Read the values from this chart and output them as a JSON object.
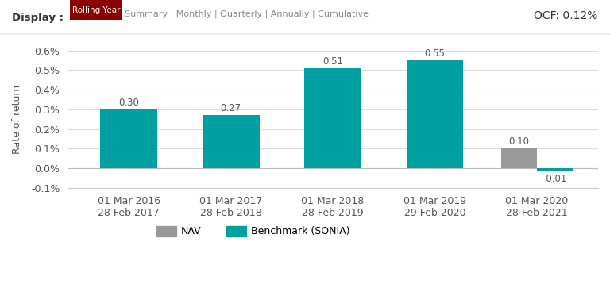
{
  "categories": [
    "01 Mar 2016\n28 Feb 2017",
    "01 Mar 2017\n28 Feb 2018",
    "01 Mar 2018\n28 Feb 2019",
    "01 Mar 2019\n29 Feb 2020",
    "01 Mar 2020\n28 Feb 2021"
  ],
  "nav_values": [
    null,
    null,
    null,
    null,
    0.1
  ],
  "benchmark_values": [
    0.3,
    0.27,
    0.51,
    0.55,
    -0.01
  ],
  "nav_color": "#999999",
  "benchmark_color": "#00A0A0",
  "bar_width": 0.35,
  "ylim": [
    -0.1,
    0.6
  ],
  "yticks": [
    -0.1,
    0.0,
    0.1,
    0.2,
    0.3,
    0.4,
    0.5,
    0.6
  ],
  "ylabel": "Rate of return",
  "background_color": "#ffffff",
  "grid_color": "#dddddd",
  "display_label": "Display :",
  "display_options": [
    "Rolling Year",
    "Summary",
    "Monthly",
    "Quarterly",
    "Annually",
    "Cumulative"
  ],
  "rolling_year_color": "#8B0000",
  "ocf_text": "OCF: 0.12%",
  "legend_nav": "NAV",
  "legend_benchmark": "Benchmark (SONIA)",
  "annotation_fontsize": 8.5,
  "label_fontsize": 9,
  "ylabel_fontsize": 9
}
